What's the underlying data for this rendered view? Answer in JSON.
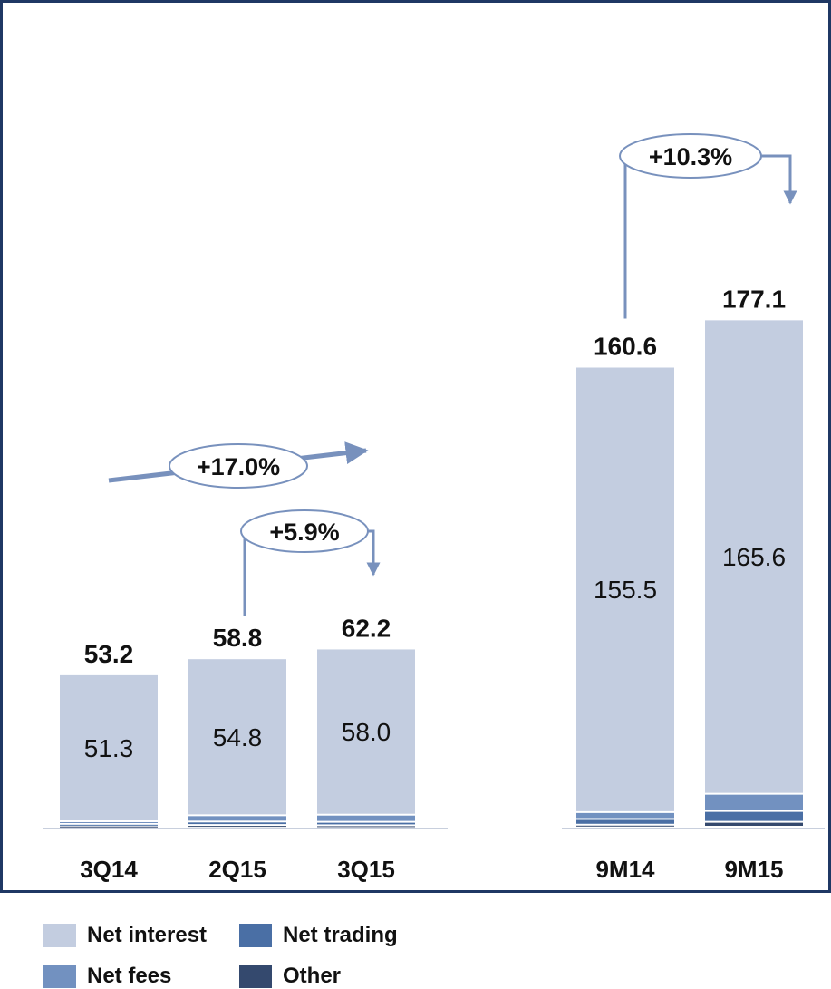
{
  "chart_data": {
    "type": "bar",
    "stacked": true,
    "categories": [
      "3Q14",
      "2Q15",
      "3Q15",
      "9M14",
      "9M15"
    ],
    "series": [
      {
        "name": "Net interest",
        "color": "#c3cde0",
        "values": [
          51.3,
          54.8,
          58.0,
          155.5,
          165.6
        ]
      },
      {
        "name": "Net fees",
        "color": "#7291c0",
        "values": [
          0.9,
          2.2,
          2.5,
          2.4,
          6.0
        ]
      },
      {
        "name": "Net trading",
        "color": "#4a6fa5",
        "values": [
          0.6,
          1.2,
          1.2,
          2.0,
          3.8
        ]
      },
      {
        "name": "Other",
        "color": "#34496e",
        "values": [
          0.4,
          0.6,
          0.5,
          0.7,
          1.7
        ]
      }
    ],
    "segment_labels": [
      "51.3",
      "54.8",
      "58.0",
      "155.5",
      "165.6"
    ],
    "totals": [
      "53.2",
      "58.8",
      "62.2",
      "160.6",
      "177.1"
    ],
    "growth": [
      {
        "from": "3Q14",
        "to": "3Q15",
        "label": "+17.0%"
      },
      {
        "from": "2Q15",
        "to": "3Q15",
        "label": "+5.9%"
      },
      {
        "from": "9M14",
        "to": "9M15",
        "label": "+10.3%"
      }
    ],
    "legend": {
      "position": "top-left",
      "items": [
        {
          "label": "Net interest",
          "color": "#c3cde0"
        },
        {
          "label": "Net trading",
          "color": "#4a6fa5"
        },
        {
          "label": "Net fees",
          "color": "#7291c0"
        },
        {
          "label": "Other",
          "color": "#34496e"
        }
      ]
    },
    "ylim": [
      0,
      185
    ],
    "grid": false,
    "border_color": "#1f3864",
    "arrow_color": "#7891bd"
  }
}
